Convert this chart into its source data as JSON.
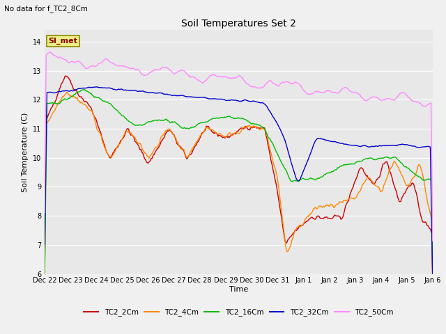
{
  "title": "Soil Temperatures Set 2",
  "subtitle": "No data for f_TC2_8Cm",
  "xlabel": "Time",
  "ylabel": "Soil Temperature (C)",
  "ylim": [
    6.0,
    14.4
  ],
  "yticks": [
    6.0,
    7.0,
    8.0,
    9.0,
    10.0,
    11.0,
    12.0,
    13.0,
    14.0
  ],
  "xtick_labels": [
    "Dec 22",
    "Dec 23",
    "Dec 24",
    "Dec 25",
    "Dec 26",
    "Dec 27",
    "Dec 28",
    "Dec 29",
    "Dec 30",
    "Dec 31",
    "Jan 1",
    "Jan 2",
    "Jan 3",
    "Jan 4",
    "Jan 5",
    "Jan 6"
  ],
  "series_colors": {
    "TC2_2Cm": "#cc0000",
    "TC2_4Cm": "#ff8800",
    "TC2_16Cm": "#00bb00",
    "TC2_32Cm": "#0000cc",
    "TC2_50Cm": "#ff88ff"
  },
  "legend_label": "SI_met",
  "legend_box_color": "#eeee88",
  "legend_box_border": "#888800",
  "plot_bg_color": "#e8e8e8",
  "fig_bg_color": "#f0f0f0",
  "grid_color": "#ffffff",
  "n_points": 500
}
